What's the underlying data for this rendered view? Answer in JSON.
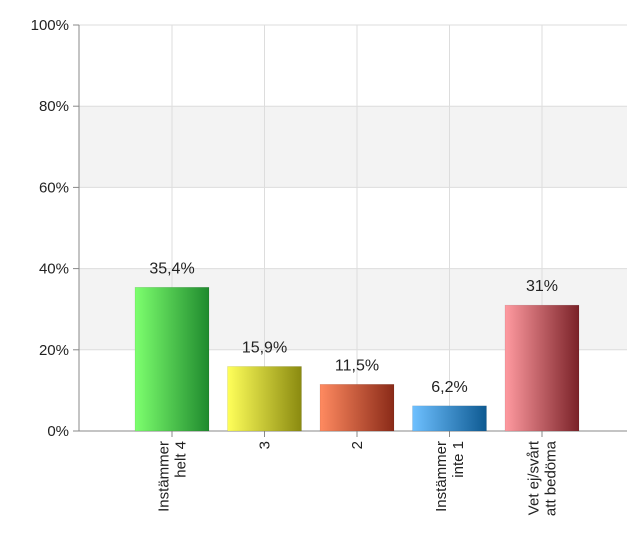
{
  "chart_data": {
    "type": "bar",
    "categories": [
      [
        "Instämmer",
        "helt 4"
      ],
      [
        "3"
      ],
      [
        "2"
      ],
      [
        "Instämmer",
        "inte 1"
      ],
      [
        "Vet ej/svårt",
        "att bedöma"
      ]
    ],
    "values": [
      35.4,
      15.9,
      11.5,
      6.2,
      31
    ],
    "value_labels": [
      "35,4%",
      "15,9%",
      "11,5%",
      "6,2%",
      "31%"
    ],
    "y_ticks": [
      "0%",
      "20%",
      "40%",
      "60%",
      "80%",
      "100%"
    ],
    "ylim": [
      0,
      100
    ],
    "title": "",
    "xlabel": "",
    "ylabel": "",
    "grid": true,
    "colors": [
      [
        "#7dff6e",
        "#1f8a2e"
      ],
      [
        "#ffff5a",
        "#8a8a10"
      ],
      [
        "#ff8a60",
        "#8a2a18"
      ],
      [
        "#6ec0ff",
        "#0e5a92"
      ],
      [
        "#ff9aa0",
        "#7a2228"
      ]
    ]
  }
}
